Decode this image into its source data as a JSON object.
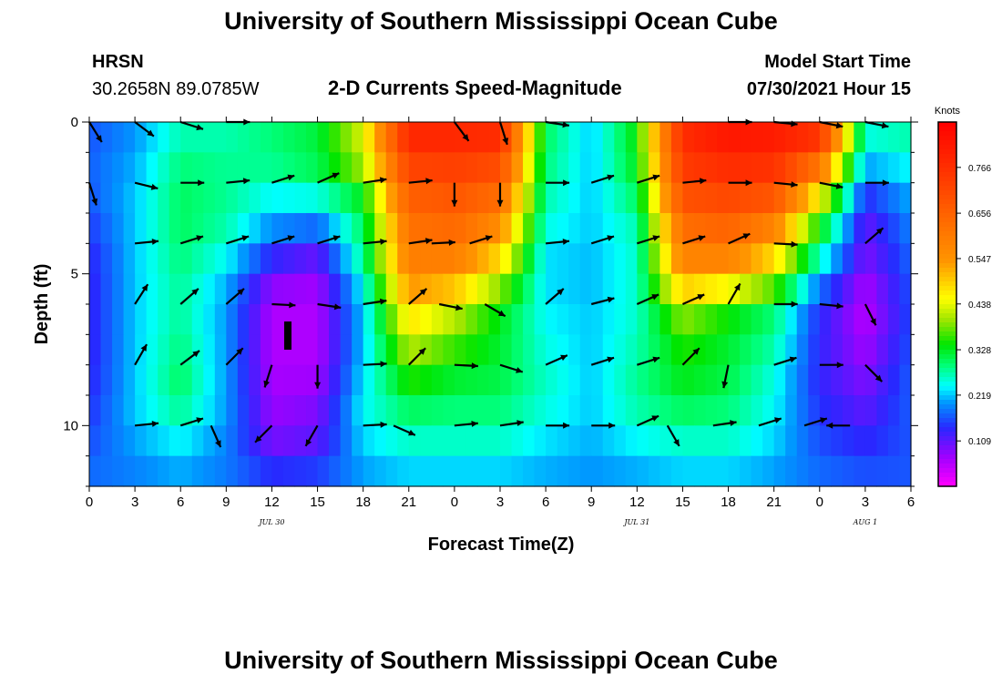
{
  "header": {
    "title_top": "University of Southern Mississippi Ocean Cube",
    "station": "HRSN",
    "coords": "30.2658N  89.0785W",
    "product": "2-D Currents Speed-Magnitude",
    "model_start_label": "Model Start Time",
    "model_start_value": "07/30/2021 Hour 15",
    "title_bottom": "University of Southern Mississippi Ocean Cube"
  },
  "chart_data": {
    "type": "heatmap",
    "title": "2-D Currents Speed-Magnitude",
    "xlabel": "Forecast Time(Z)",
    "ylabel": "Depth (ft)",
    "x_hours_range": [
      0,
      54
    ],
    "y_range_ft": [
      0,
      12
    ],
    "x_tick_labels": [
      "0",
      "3",
      "6",
      "9",
      "12",
      "15",
      "18",
      "21",
      "0",
      "3",
      "6",
      "9",
      "12",
      "15",
      "18",
      "21",
      "0",
      "3",
      "6"
    ],
    "y_tick_labels": [
      {
        "v": 0,
        "t": "0"
      },
      {
        "v": 5,
        "t": "5"
      },
      {
        "v": 10,
        "t": "10"
      }
    ],
    "date_labels": [
      {
        "hour": 12,
        "text": "JUL 30"
      },
      {
        "hour": 36,
        "text": "JUL 31"
      },
      {
        "hour": 51,
        "text": "AUG 1"
      }
    ],
    "colorbar": {
      "title": "Knots",
      "ticks": [
        "0.766",
        "0.656",
        "0.547",
        "0.438",
        "0.328",
        "0.219",
        "0.109"
      ],
      "tick_values": [
        0.766,
        0.656,
        0.547,
        0.438,
        0.328,
        0.219,
        0.109
      ],
      "min": 0.0,
      "max": 0.875
    },
    "depths_ft": [
      0,
      1,
      2,
      3,
      4,
      5,
      6,
      7,
      8,
      9,
      10,
      11,
      12
    ],
    "speed_knots_rows": [
      [
        0.16,
        0.2,
        0.26,
        0.26,
        0.28,
        0.3,
        0.42,
        0.8,
        0.8,
        0.8,
        0.3,
        0.22,
        0.34,
        0.78,
        0.84,
        0.82,
        0.8,
        0.26,
        0.28
      ],
      [
        0.17,
        0.2,
        0.28,
        0.28,
        0.3,
        0.33,
        0.44,
        0.76,
        0.76,
        0.74,
        0.3,
        0.22,
        0.34,
        0.76,
        0.8,
        0.8,
        0.7,
        0.24,
        0.26
      ],
      [
        0.17,
        0.22,
        0.3,
        0.28,
        0.26,
        0.28,
        0.36,
        0.68,
        0.7,
        0.66,
        0.28,
        0.22,
        0.32,
        0.72,
        0.74,
        0.72,
        0.52,
        0.17,
        0.22
      ],
      [
        0.16,
        0.22,
        0.3,
        0.28,
        0.22,
        0.22,
        0.3,
        0.64,
        0.66,
        0.6,
        0.26,
        0.22,
        0.28,
        0.66,
        0.68,
        0.64,
        0.38,
        0.11,
        0.2
      ],
      [
        0.14,
        0.22,
        0.3,
        0.26,
        0.17,
        0.13,
        0.3,
        0.6,
        0.62,
        0.52,
        0.24,
        0.22,
        0.26,
        0.6,
        0.62,
        0.52,
        0.3,
        0.1,
        0.18
      ],
      [
        0.13,
        0.22,
        0.28,
        0.22,
        0.1,
        0.08,
        0.26,
        0.58,
        0.56,
        0.44,
        0.22,
        0.21,
        0.26,
        0.56,
        0.54,
        0.44,
        0.22,
        0.08,
        0.17
      ],
      [
        0.13,
        0.22,
        0.28,
        0.2,
        0.06,
        0.06,
        0.22,
        0.5,
        0.44,
        0.34,
        0.24,
        0.22,
        0.26,
        0.42,
        0.36,
        0.3,
        0.14,
        0.05,
        0.16
      ],
      [
        0.13,
        0.22,
        0.28,
        0.2,
        0.06,
        0.06,
        0.22,
        0.44,
        0.38,
        0.32,
        0.24,
        0.22,
        0.26,
        0.36,
        0.32,
        0.28,
        0.14,
        0.06,
        0.16
      ],
      [
        0.13,
        0.22,
        0.3,
        0.2,
        0.06,
        0.06,
        0.22,
        0.38,
        0.34,
        0.32,
        0.26,
        0.22,
        0.28,
        0.34,
        0.32,
        0.26,
        0.13,
        0.08,
        0.17
      ],
      [
        0.14,
        0.22,
        0.3,
        0.2,
        0.07,
        0.08,
        0.24,
        0.32,
        0.3,
        0.3,
        0.26,
        0.22,
        0.28,
        0.32,
        0.3,
        0.24,
        0.14,
        0.1,
        0.17
      ],
      [
        0.15,
        0.22,
        0.26,
        0.2,
        0.08,
        0.1,
        0.24,
        0.28,
        0.28,
        0.28,
        0.24,
        0.22,
        0.26,
        0.28,
        0.28,
        0.24,
        0.15,
        0.12,
        0.17
      ],
      [
        0.17,
        0.19,
        0.22,
        0.18,
        0.11,
        0.12,
        0.21,
        0.24,
        0.24,
        0.24,
        0.22,
        0.2,
        0.22,
        0.24,
        0.24,
        0.21,
        0.17,
        0.15,
        0.16
      ],
      [
        0.18,
        0.19,
        0.2,
        0.19,
        0.17,
        0.18,
        0.2,
        0.21,
        0.21,
        0.21,
        0.2,
        0.2,
        0.2,
        0.21,
        0.21,
        0.2,
        0.18,
        0.17,
        0.17
      ]
    ],
    "vectors": [
      {
        "h": 0,
        "d": 0,
        "dx": 0.5,
        "dy": 0.8
      },
      {
        "h": 3,
        "d": 0,
        "dx": 0.8,
        "dy": 0.6
      },
      {
        "h": 6,
        "d": 0,
        "dx": 0.95,
        "dy": 0.3
      },
      {
        "h": 9,
        "d": 0,
        "dx": 1,
        "dy": 0
      },
      {
        "h": 24,
        "d": 0,
        "dx": 0.6,
        "dy": 0.8
      },
      {
        "h": 27,
        "d": 0,
        "dx": 0.3,
        "dy": 0.95
      },
      {
        "h": 30,
        "d": 0,
        "dx": 1,
        "dy": 0.15
      },
      {
        "h": 42,
        "d": 0,
        "dx": 1,
        "dy": 0
      },
      {
        "h": 45,
        "d": 0,
        "dx": 1,
        "dy": 0.1
      },
      {
        "h": 48,
        "d": 0,
        "dx": 1,
        "dy": 0.2
      },
      {
        "h": 51,
        "d": 0,
        "dx": 1,
        "dy": 0.2
      },
      {
        "h": 0,
        "d": 2,
        "dx": 0.3,
        "dy": 0.95
      },
      {
        "h": 3,
        "d": 2,
        "dx": 1,
        "dy": 0.25
      },
      {
        "h": 6,
        "d": 2,
        "dx": 1,
        "dy": 0
      },
      {
        "h": 9,
        "d": 2,
        "dx": 1,
        "dy": -0.1
      },
      {
        "h": 12,
        "d": 2,
        "dx": 0.95,
        "dy": -0.3
      },
      {
        "h": 15,
        "d": 2,
        "dx": 0.9,
        "dy": -0.4
      },
      {
        "h": 18,
        "d": 2,
        "dx": 1,
        "dy": -0.15
      },
      {
        "h": 21,
        "d": 2,
        "dx": 1,
        "dy": -0.1
      },
      {
        "h": 24,
        "d": 2,
        "dx": 0,
        "dy": 1
      },
      {
        "h": 27,
        "d": 2,
        "dx": 0,
        "dy": 1
      },
      {
        "h": 30,
        "d": 2,
        "dx": 1,
        "dy": 0
      },
      {
        "h": 33,
        "d": 2,
        "dx": 0.95,
        "dy": -0.3
      },
      {
        "h": 36,
        "d": 2,
        "dx": 0.95,
        "dy": -0.3
      },
      {
        "h": 39,
        "d": 2,
        "dx": 1,
        "dy": -0.1
      },
      {
        "h": 42,
        "d": 2,
        "dx": 1,
        "dy": 0
      },
      {
        "h": 45,
        "d": 2,
        "dx": 1,
        "dy": 0.1
      },
      {
        "h": 48,
        "d": 2,
        "dx": 1,
        "dy": 0.2
      },
      {
        "h": 51,
        "d": 2,
        "dx": 1,
        "dy": 0
      },
      {
        "h": 3,
        "d": 4,
        "dx": 1,
        "dy": -0.1
      },
      {
        "h": 6,
        "d": 4,
        "dx": 0.95,
        "dy": -0.3
      },
      {
        "h": 9,
        "d": 4,
        "dx": 0.95,
        "dy": -0.3
      },
      {
        "h": 12,
        "d": 4,
        "dx": 0.95,
        "dy": -0.3
      },
      {
        "h": 15,
        "d": 4,
        "dx": 0.95,
        "dy": -0.3
      },
      {
        "h": 18,
        "d": 4,
        "dx": 1,
        "dy": -0.1
      },
      {
        "h": 21,
        "d": 4,
        "dx": 1,
        "dy": -0.15
      },
      {
        "h": 22.5,
        "d": 4,
        "dx": 1,
        "dy": -0.05
      },
      {
        "h": 25,
        "d": 4,
        "dx": 0.95,
        "dy": -0.3
      },
      {
        "h": 30,
        "d": 4,
        "dx": 1,
        "dy": -0.1
      },
      {
        "h": 33,
        "d": 4,
        "dx": 0.95,
        "dy": -0.3
      },
      {
        "h": 36,
        "d": 4,
        "dx": 0.95,
        "dy": -0.3
      },
      {
        "h": 39,
        "d": 4,
        "dx": 0.95,
        "dy": -0.3
      },
      {
        "h": 42,
        "d": 4,
        "dx": 0.9,
        "dy": -0.4
      },
      {
        "h": 45,
        "d": 4,
        "dx": 1,
        "dy": 0.05
      },
      {
        "h": 51,
        "d": 4,
        "dx": 0.75,
        "dy": -0.65
      },
      {
        "h": 3,
        "d": 6,
        "dx": 0.55,
        "dy": -0.85
      },
      {
        "h": 6,
        "d": 6,
        "dx": 0.75,
        "dy": -0.65
      },
      {
        "h": 9,
        "d": 6,
        "dx": 0.75,
        "dy": -0.65
      },
      {
        "h": 12,
        "d": 6,
        "dx": 1,
        "dy": 0.05
      },
      {
        "h": 15,
        "d": 6,
        "dx": 1,
        "dy": 0.15
      },
      {
        "h": 18,
        "d": 6,
        "dx": 1,
        "dy": -0.15
      },
      {
        "h": 21,
        "d": 6,
        "dx": 0.75,
        "dy": -0.65
      },
      {
        "h": 23,
        "d": 6,
        "dx": 1,
        "dy": 0.2
      },
      {
        "h": 26,
        "d": 6,
        "dx": 0.85,
        "dy": 0.5
      },
      {
        "h": 30,
        "d": 6,
        "dx": 0.75,
        "dy": -0.65
      },
      {
        "h": 33,
        "d": 6,
        "dx": 0.95,
        "dy": -0.25
      },
      {
        "h": 36,
        "d": 6,
        "dx": 0.9,
        "dy": -0.4
      },
      {
        "h": 39,
        "d": 6,
        "dx": 0.9,
        "dy": -0.4
      },
      {
        "h": 42,
        "d": 6,
        "dx": 0.5,
        "dy": -0.87
      },
      {
        "h": 45,
        "d": 6,
        "dx": 1,
        "dy": 0
      },
      {
        "h": 48,
        "d": 6,
        "dx": 1,
        "dy": 0.1
      },
      {
        "h": 51,
        "d": 6,
        "dx": 0.45,
        "dy": 0.9
      },
      {
        "h": 3,
        "d": 8,
        "dx": 0.5,
        "dy": -0.87
      },
      {
        "h": 6,
        "d": 8,
        "dx": 0.8,
        "dy": -0.6
      },
      {
        "h": 9,
        "d": 8,
        "dx": 0.7,
        "dy": -0.7
      },
      {
        "h": 12,
        "d": 8,
        "dx": -0.3,
        "dy": 0.95
      },
      {
        "h": 15,
        "d": 8,
        "dx": 0,
        "dy": 1
      },
      {
        "h": 18,
        "d": 8,
        "dx": 1,
        "dy": -0.05
      },
      {
        "h": 21,
        "d": 8,
        "dx": 0.7,
        "dy": -0.7
      },
      {
        "h": 24,
        "d": 8,
        "dx": 1,
        "dy": 0.05
      },
      {
        "h": 27,
        "d": 8,
        "dx": 0.95,
        "dy": 0.3
      },
      {
        "h": 30,
        "d": 8,
        "dx": 0.9,
        "dy": -0.4
      },
      {
        "h": 33,
        "d": 8,
        "dx": 0.95,
        "dy": -0.3
      },
      {
        "h": 36,
        "d": 8,
        "dx": 0.95,
        "dy": -0.3
      },
      {
        "h": 39,
        "d": 8,
        "dx": 0.7,
        "dy": -0.7
      },
      {
        "h": 42,
        "d": 8,
        "dx": -0.2,
        "dy": 0.98
      },
      {
        "h": 45,
        "d": 8,
        "dx": 0.95,
        "dy": -0.3
      },
      {
        "h": 48,
        "d": 8,
        "dx": 1,
        "dy": 0
      },
      {
        "h": 51,
        "d": 8,
        "dx": 0.7,
        "dy": 0.7
      },
      {
        "h": 3,
        "d": 10,
        "dx": 1,
        "dy": -0.1
      },
      {
        "h": 6,
        "d": 10,
        "dx": 0.95,
        "dy": -0.3
      },
      {
        "h": 8,
        "d": 10,
        "dx": 0.4,
        "dy": 0.9
      },
      {
        "h": 12,
        "d": 10,
        "dx": -0.7,
        "dy": 0.7
      },
      {
        "h": 15,
        "d": 10,
        "dx": -0.5,
        "dy": 0.87
      },
      {
        "h": 18,
        "d": 10,
        "dx": 1,
        "dy": -0.05
      },
      {
        "h": 20,
        "d": 10,
        "dx": 0.9,
        "dy": 0.4
      },
      {
        "h": 24,
        "d": 10,
        "dx": 1,
        "dy": -0.1
      },
      {
        "h": 27,
        "d": 10,
        "dx": 1,
        "dy": -0.15
      },
      {
        "h": 30,
        "d": 10,
        "dx": 1,
        "dy": 0
      },
      {
        "h": 33,
        "d": 10,
        "dx": 1,
        "dy": 0
      },
      {
        "h": 36,
        "d": 10,
        "dx": 0.9,
        "dy": -0.4
      },
      {
        "h": 38,
        "d": 10,
        "dx": 0.5,
        "dy": 0.87
      },
      {
        "h": 41,
        "d": 10,
        "dx": 1,
        "dy": -0.15
      },
      {
        "h": 44,
        "d": 10,
        "dx": 0.95,
        "dy": -0.3
      },
      {
        "h": 47,
        "d": 10,
        "dx": 0.95,
        "dy": -0.3
      },
      {
        "h": 50,
        "d": 10,
        "dx": -1,
        "dy": 0
      }
    ]
  }
}
